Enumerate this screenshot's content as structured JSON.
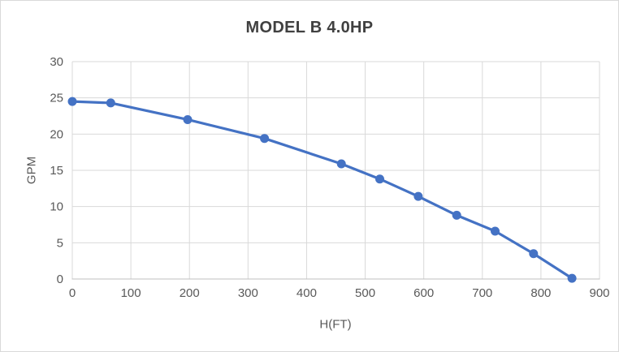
{
  "chart_data": {
    "type": "line",
    "title": "MODEL B 4.0HP",
    "xlabel": "H(FT)",
    "ylabel": "GPM",
    "xlim": [
      0,
      900
    ],
    "ylim": [
      0,
      30
    ],
    "x_ticks": [
      0,
      100,
      200,
      300,
      400,
      500,
      600,
      700,
      800,
      900
    ],
    "y_ticks": [
      0,
      5,
      10,
      15,
      20,
      25,
      30
    ],
    "grid": true,
    "legend": "none",
    "series": [
      {
        "x": [
          0,
          65.6,
          196.9,
          328.1,
          459.3,
          524.9,
          590.6,
          656.2,
          721.8,
          787.4,
          853.0
        ],
        "y": [
          24.5,
          24.3,
          22.0,
          19.4,
          15.9,
          13.8,
          11.4,
          8.8,
          6.6,
          3.5,
          0.1
        ],
        "color": "#4472C4",
        "marker": "circle"
      }
    ],
    "colors": {
      "line": "#4472C4",
      "gridline": "#D9D9D9",
      "axis_line": "#BFBFBF",
      "title_text": "#404040",
      "tick_text": "#595959",
      "frame_border": "#D9D9D9",
      "background": "#FFFFFF"
    }
  }
}
